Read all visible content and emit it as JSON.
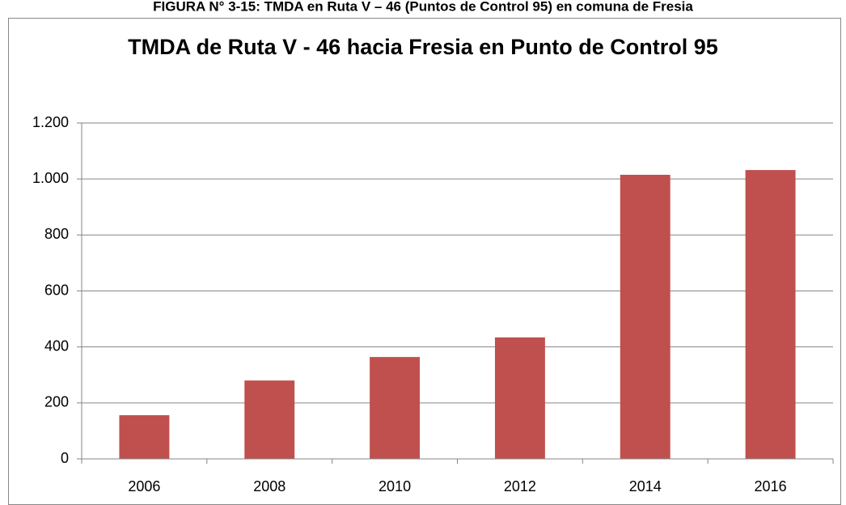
{
  "caption": "FIGURA N° 3-15: TMDA en Ruta V – 46 (Puntos de Control 95) en comuna de Fresia",
  "chart_data": {
    "type": "bar",
    "title": "TMDA de Ruta V - 46 hacia Fresia en Punto de Control 95",
    "categories": [
      "2006",
      "2008",
      "2010",
      "2012",
      "2014",
      "2016"
    ],
    "values": [
      156,
      280,
      364,
      434,
      1015,
      1032
    ],
    "color": "#c0504d",
    "ylim": [
      0,
      1200
    ],
    "yticks": [
      0,
      200,
      400,
      600,
      800,
      {
        "value": 1000,
        "label": "1.000"
      },
      {
        "value": 1200,
        "label": "1.200"
      }
    ],
    "grid": true
  }
}
